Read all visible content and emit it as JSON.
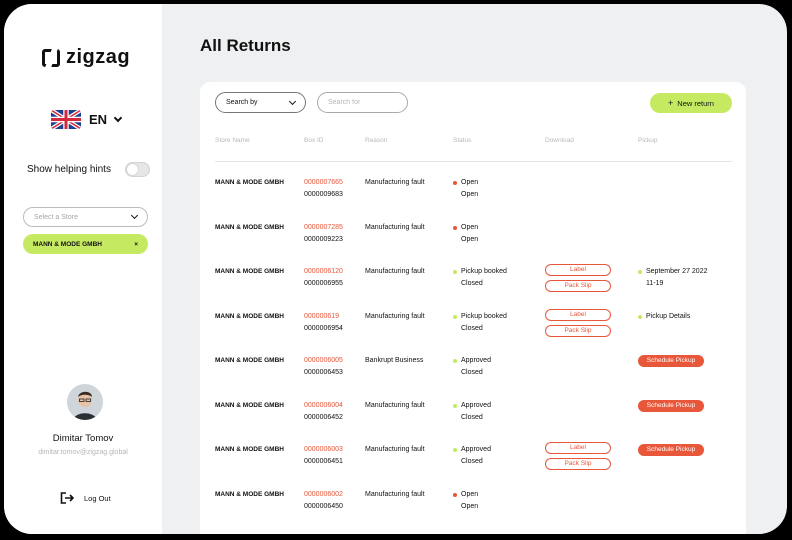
{
  "app": {
    "brand": "zigzag",
    "accent": "#c5ea62",
    "danger": "#e8573a"
  },
  "sidebar": {
    "language": {
      "code": "EN",
      "flag_icon": "uk-flag-icon"
    },
    "hints_label": "Show helping hints",
    "hints_enabled": false,
    "store_select_placeholder": "Select a Store",
    "selected_store": "MANN & MODE GMBH",
    "user": {
      "name": "Dimitar Tomov",
      "email": "dimitar.tomov@zigzag.global"
    },
    "logout_label": "Log Out"
  },
  "main": {
    "title": "All Returns",
    "search_by_label": "Search by",
    "search_placeholder": "Search for",
    "new_return_label": "New return",
    "columns": [
      "Store Name",
      "Box ID",
      "Reason",
      "Status",
      "Download",
      "Pickup"
    ],
    "download_labels": {
      "label": "Label",
      "pack_slip": "Pack Slip"
    },
    "schedule_label": "Schedule Pickup",
    "rows": [
      {
        "store": "MANN & MODE GMBH",
        "box_id": "0000007665",
        "box_id2": "0000009683",
        "reason": "Manufacturing fault",
        "status": "Open",
        "status_color": "red",
        "substatus": "Open"
      },
      {
        "store": "MANN & MODE GMBH",
        "box_id": "0000007285",
        "box_id2": "0000009223",
        "reason": "Manufacturing fault",
        "status": "Open",
        "status_color": "red",
        "substatus": "Open"
      },
      {
        "store": "MANN & MODE GMBH",
        "box_id": "0000006120",
        "box_id2": "0000006955",
        "reason": "Manufacturing fault",
        "status": "Pickup booked",
        "status_color": "green",
        "substatus": "Closed",
        "downloads": true,
        "pickup_date": "September 27 2022",
        "pickup_time": "11-19"
      },
      {
        "store": "MANN & MODE GMBH",
        "box_id": "000000619",
        "box_id2": "0000006954",
        "reason": "Manufacturing fault",
        "status": "Pickup booked",
        "status_color": "green",
        "substatus": "Closed",
        "downloads": true,
        "pickup_date": "Pickup Details"
      },
      {
        "store": "MANN & MODE GMBH",
        "box_id": "0000006005",
        "box_id2": "0000006453",
        "reason": "Bankrupt Business",
        "status": "Approved",
        "status_color": "green",
        "substatus": "Closed",
        "schedule": true
      },
      {
        "store": "MANN & MODE GMBH",
        "box_id": "0000006004",
        "box_id2": "0000006452",
        "reason": "Manufacturing fault",
        "status": "Approved",
        "status_color": "green",
        "substatus": "Closed",
        "schedule": true
      },
      {
        "store": "MANN & MODE GMBH",
        "box_id": "0000006003",
        "box_id2": "0000006451",
        "reason": "Manufacturing fault",
        "status": "Approved",
        "status_color": "green",
        "substatus": "Closed",
        "downloads": true,
        "schedule": true
      },
      {
        "store": "MANN & MODE GMBH",
        "box_id": "0000006002",
        "box_id2": "0000006450",
        "reason": "Manufacturing fault",
        "status": "Open",
        "status_color": "red",
        "substatus": "Open"
      }
    ]
  }
}
